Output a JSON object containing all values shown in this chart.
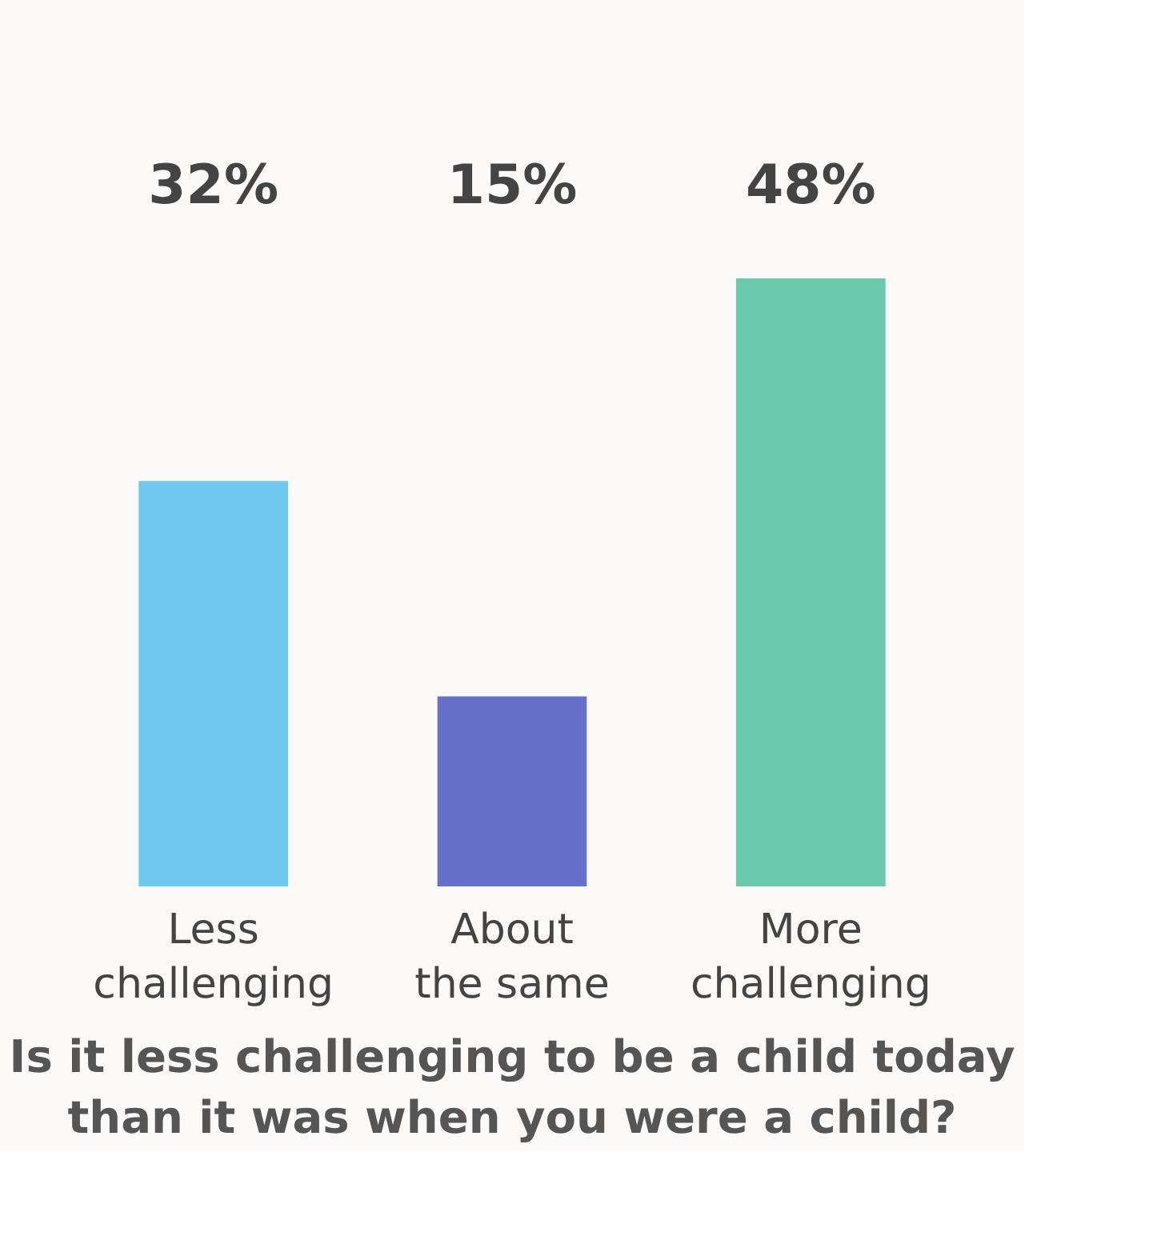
{
  "chart_data": {
    "type": "bar",
    "title": "Is it less challenging to be a child today than it was when you were a child?",
    "categories": [
      "Less challenging",
      "About the same",
      "More challenging"
    ],
    "values": [
      32,
      15,
      48
    ],
    "value_labels": [
      "32%",
      "15%",
      "48%"
    ],
    "colors": [
      "#6ec8f0",
      "#6670c8",
      "#6ccbad"
    ],
    "tick_labels": "x"
  }
}
